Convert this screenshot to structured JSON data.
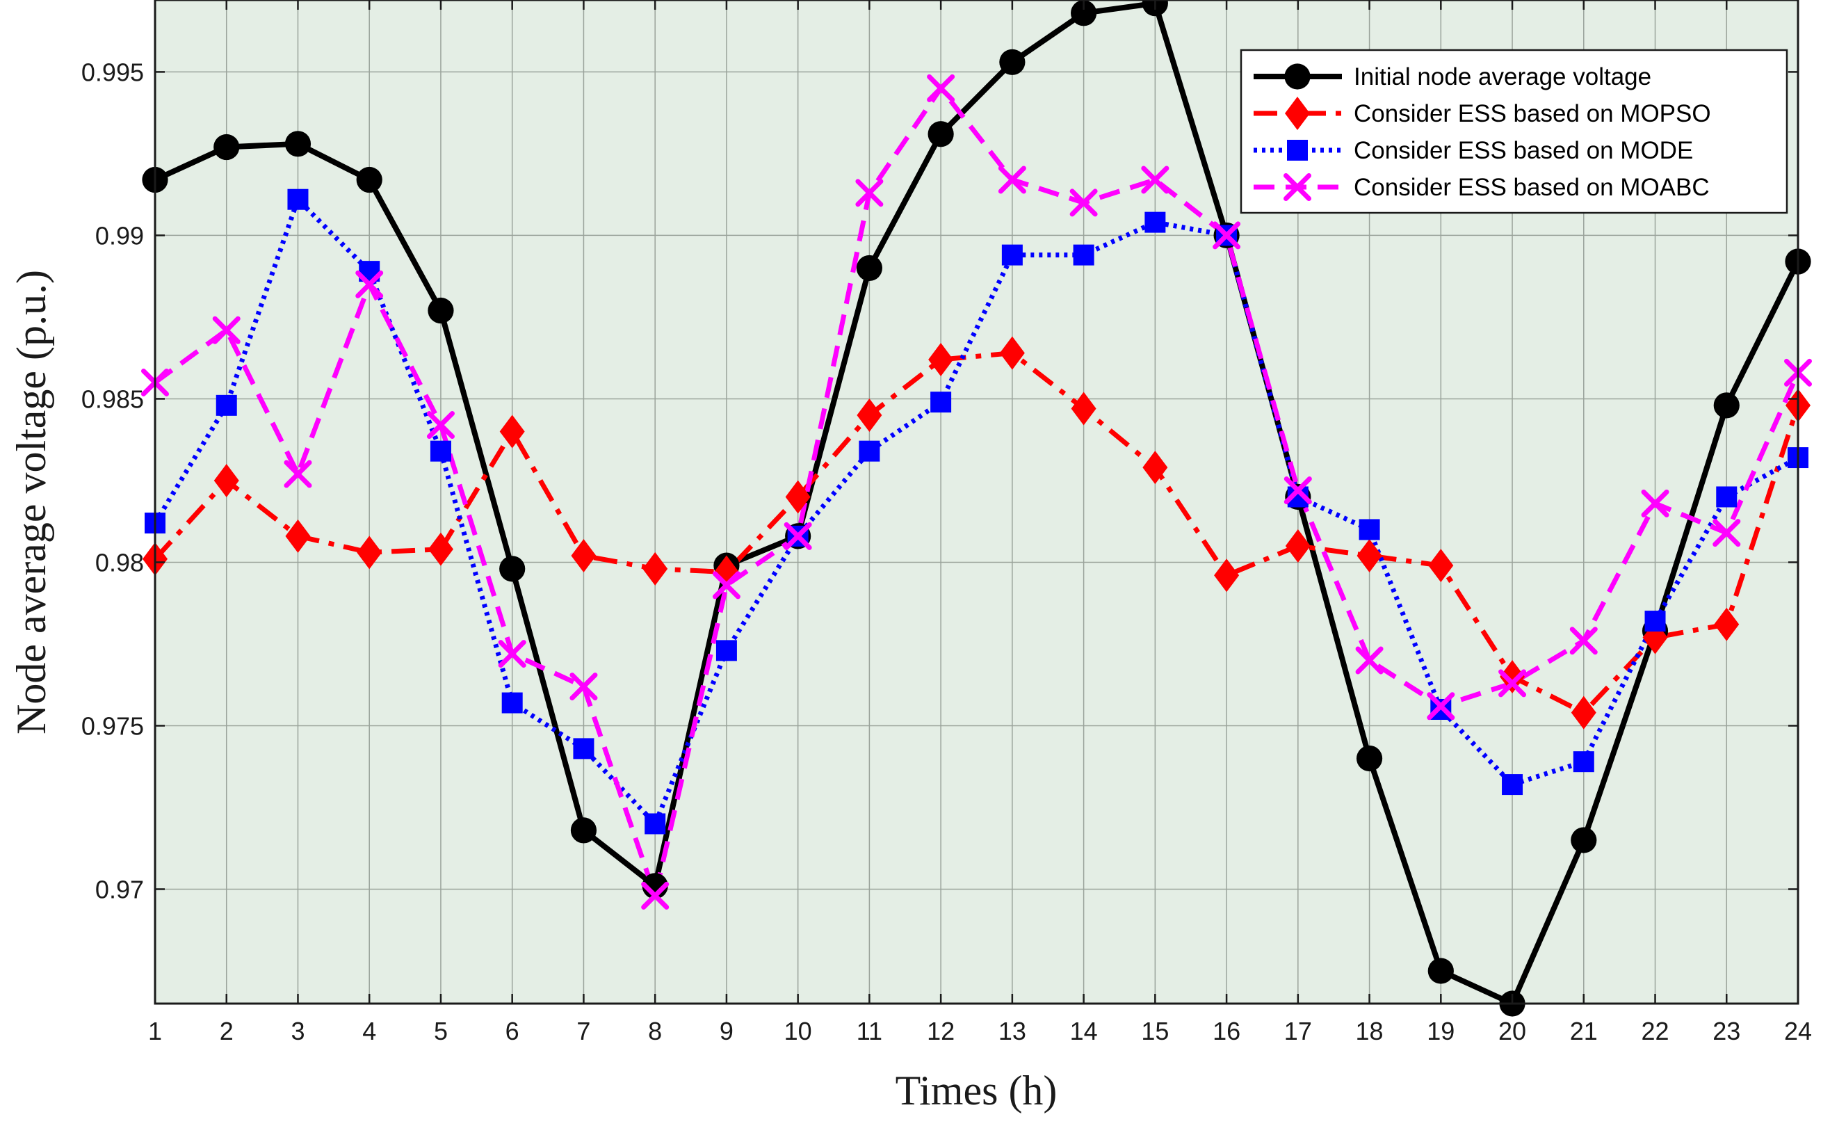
{
  "chart_data": {
    "type": "line",
    "title": "",
    "xlabel": "Times (h)",
    "ylabel": "Node average voltage (p.u.)",
    "x": [
      1,
      2,
      3,
      4,
      5,
      6,
      7,
      8,
      9,
      10,
      11,
      12,
      13,
      14,
      15,
      16,
      17,
      18,
      19,
      20,
      21,
      22,
      23,
      24
    ],
    "xticks": [
      "1",
      "2",
      "3",
      "4",
      "5",
      "6",
      "7",
      "8",
      "9",
      "10",
      "11",
      "12",
      "13",
      "14",
      "15",
      "16",
      "17",
      "18",
      "19",
      "20",
      "21",
      "22",
      "23",
      "24"
    ],
    "xlim": [
      1,
      24
    ],
    "ylim": [
      0.9665,
      0.9972
    ],
    "yticks": [
      0.97,
      0.975,
      0.98,
      0.985,
      0.99,
      0.995
    ],
    "ytick_labels": [
      "0.97",
      "0.975",
      "0.98",
      "0.985",
      "0.99",
      "0.995"
    ],
    "grid": true,
    "legend_position": "top-right",
    "background": "#e4eee5",
    "series": [
      {
        "name": "Initial node average voltage",
        "color": "#000000",
        "style": "solid",
        "marker": "circle",
        "values": [
          0.9917,
          0.9927,
          0.9928,
          0.9917,
          0.9877,
          0.9798,
          0.9718,
          0.9701,
          0.9799,
          0.9808,
          0.989,
          0.9931,
          0.9953,
          0.9968,
          0.9971,
          0.99,
          0.982,
          0.974,
          0.9675,
          0.9665,
          0.9715,
          0.9779,
          0.9848,
          0.9892
        ]
      },
      {
        "name": "Consider ESS based on MOPSO",
        "color": "#ff0000",
        "style": "dashdot",
        "marker": "diamond",
        "values": [
          0.9801,
          0.9825,
          0.9808,
          0.9803,
          0.9804,
          0.984,
          0.9802,
          0.9798,
          0.9797,
          0.982,
          0.9845,
          0.9862,
          0.9864,
          0.9847,
          0.9829,
          0.9796,
          0.9805,
          0.9802,
          0.9799,
          0.9765,
          0.9754,
          0.9777,
          0.9781,
          0.9848
        ]
      },
      {
        "name": "Consider ESS based on MODE",
        "color": "#0000ff",
        "style": "dotted",
        "marker": "square",
        "values": [
          0.9812,
          0.9848,
          0.9911,
          0.9889,
          0.9834,
          0.9757,
          0.9743,
          0.972,
          0.9773,
          0.9808,
          0.9834,
          0.9849,
          0.9894,
          0.9894,
          0.9904,
          0.99,
          0.982,
          0.981,
          0.9755,
          0.9732,
          0.9739,
          0.9782,
          0.982,
          0.9832
        ]
      },
      {
        "name": "Consider ESS based on MOABC",
        "color": "#ff00ff",
        "style": "dashed",
        "marker": "x",
        "values": [
          0.9855,
          0.9871,
          0.9827,
          0.9885,
          0.9842,
          0.9772,
          0.9762,
          0.9698,
          0.9793,
          0.9808,
          0.9913,
          0.9945,
          0.9917,
          0.991,
          0.9917,
          0.99,
          0.9822,
          0.977,
          0.9756,
          0.9763,
          0.9776,
          0.9818,
          0.9809,
          0.9858
        ]
      }
    ]
  }
}
